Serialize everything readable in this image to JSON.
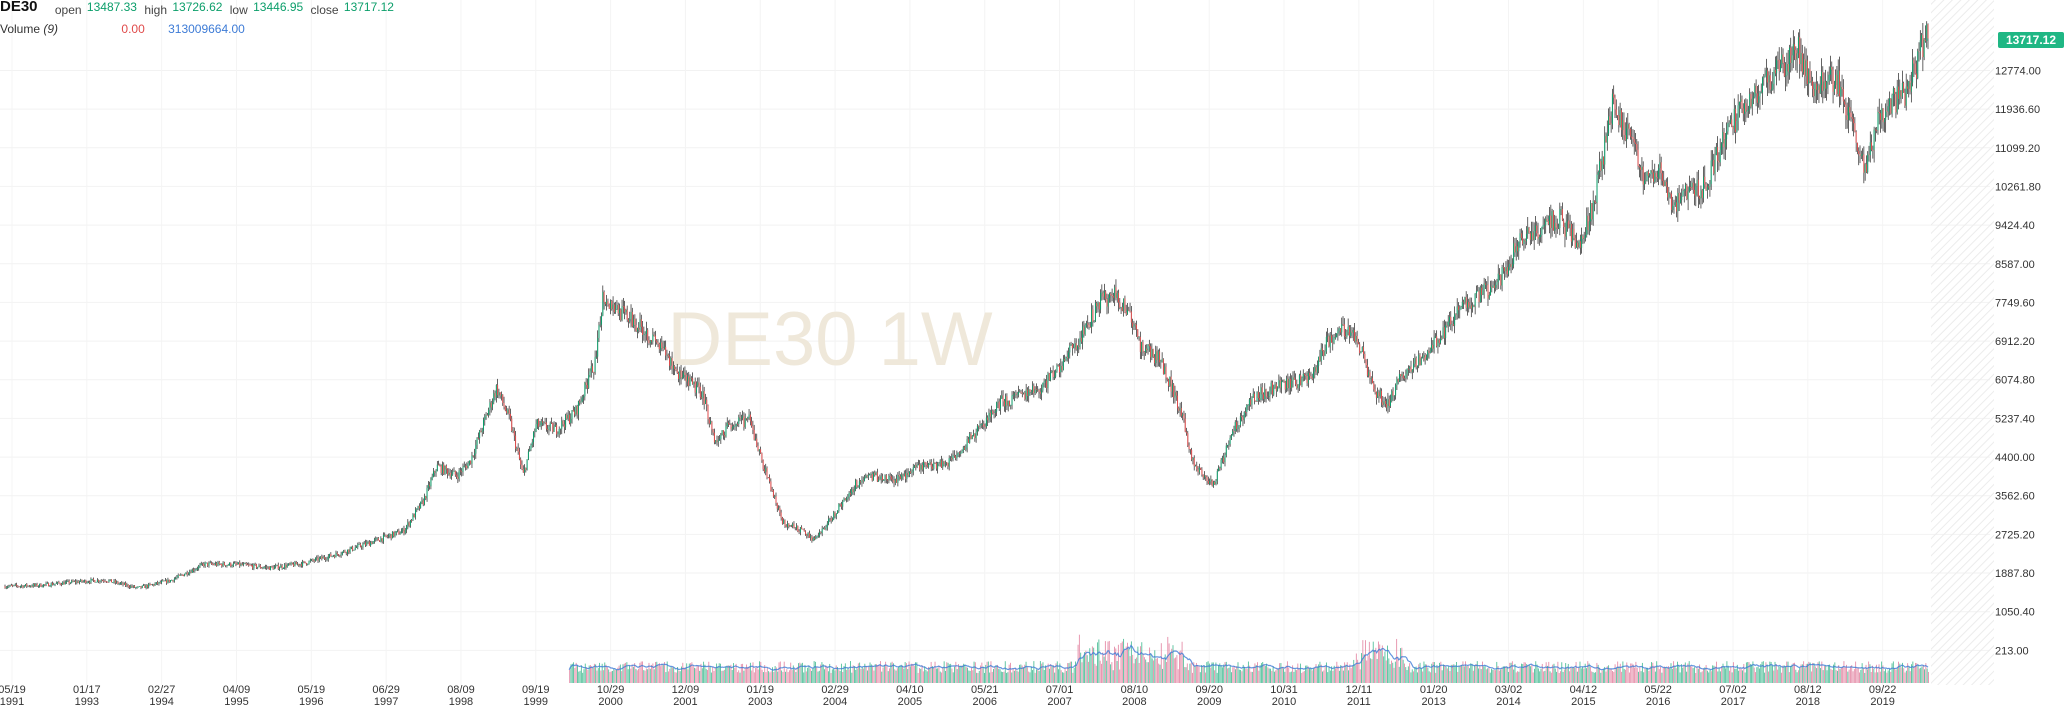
{
  "header": {
    "symbol": "DE30",
    "open_label": "open",
    "open": "13487.33",
    "high_label": "high",
    "high": "13726.62",
    "low_label": "low",
    "low": "13446.95",
    "close_label": "close",
    "close": "13717.12",
    "volume_label": "Volume",
    "volume_period": "(9)",
    "volume_change": "0.00",
    "volume_value": "313009664.00"
  },
  "watermark": "DE30 1W",
  "price_tag": "13717.12",
  "colors": {
    "up": "#0b9e6a",
    "down": "#e04a4a",
    "wick": "#222222",
    "vol_up": "#35b58a",
    "vol_down": "#e07a9a",
    "vol_ma": "#3d7bd6",
    "tag": "#1fb784"
  },
  "chart_data": {
    "type": "line",
    "y_ticks": [
      "213.00",
      "1050.40",
      "1887.80",
      "2725.20",
      "3562.60",
      "4400.00",
      "5237.40",
      "6074.80",
      "6912.20",
      "7749.60",
      "8587.00",
      "9424.40",
      "10261.80",
      "11099.20",
      "11936.60",
      "12774.00"
    ],
    "ylim": [
      -537,
      14300
    ],
    "x_ticks": [
      {
        "d": "05/19",
        "y": "1991"
      },
      {
        "d": "01/17",
        "y": "1993"
      },
      {
        "d": "02/27",
        "y": "1994"
      },
      {
        "d": "04/09",
        "y": "1995"
      },
      {
        "d": "05/19",
        "y": "1996"
      },
      {
        "d": "06/29",
        "y": "1997"
      },
      {
        "d": "08/09",
        "y": "1998"
      },
      {
        "d": "09/19",
        "y": "1999"
      },
      {
        "d": "10/29",
        "y": "2000"
      },
      {
        "d": "12/09",
        "y": "2001"
      },
      {
        "d": "01/19",
        "y": "2003"
      },
      {
        "d": "02/29",
        "y": "2004"
      },
      {
        "d": "04/10",
        "y": "2005"
      },
      {
        "d": "05/21",
        "y": "2006"
      },
      {
        "d": "07/01",
        "y": "2007"
      },
      {
        "d": "08/10",
        "y": "2008"
      },
      {
        "d": "09/20",
        "y": "2009"
      },
      {
        "d": "10/31",
        "y": "2010"
      },
      {
        "d": "12/11",
        "y": "2011"
      },
      {
        "d": "01/20",
        "y": "2013"
      },
      {
        "d": "03/02",
        "y": "2014"
      },
      {
        "d": "04/12",
        "y": "2015"
      },
      {
        "d": "05/22",
        "y": "2016"
      },
      {
        "d": "07/02",
        "y": "2017"
      },
      {
        "d": "08/12",
        "y": "2018"
      },
      {
        "d": "09/22",
        "y": "2019"
      }
    ],
    "x": [
      1991.0,
      1991.5,
      1992.0,
      1992.5,
      1993.0,
      1993.5,
      1994.0,
      1994.5,
      1995.0,
      1995.5,
      1996.0,
      1996.5,
      1997.0,
      1997.3,
      1997.5,
      1997.8,
      1998.0,
      1998.4,
      1998.6,
      1998.8,
      1999.0,
      1999.3,
      1999.6,
      1999.9,
      2000.0,
      2000.3,
      2000.6,
      2000.9,
      2001.2,
      2001.5,
      2001.7,
      2001.9,
      2002.2,
      2002.4,
      2002.7,
      2003.0,
      2003.2,
      2003.5,
      2003.8,
      2004.0,
      2004.4,
      2004.8,
      2005.2,
      2005.6,
      2006.0,
      2006.3,
      2006.6,
      2006.9,
      2007.2,
      2007.5,
      2007.7,
      2007.9,
      2008.1,
      2008.4,
      2008.7,
      2008.9,
      2009.1,
      2009.2,
      2009.5,
      2009.8,
      2010.1,
      2010.4,
      2010.7,
      2010.9,
      2011.2,
      2011.4,
      2011.6,
      2011.8,
      2012.0,
      2012.3,
      2012.6,
      2012.9,
      2013.2,
      2013.5,
      2013.8,
      2014.1,
      2014.4,
      2014.7,
      2014.9,
      2015.2,
      2015.3,
      2015.5,
      2015.7,
      2015.9,
      2016.1,
      2016.3,
      2016.6,
      2016.9,
      2017.2,
      2017.5,
      2017.8,
      2018.0,
      2018.2,
      2018.4,
      2018.6,
      2018.8,
      2019.0,
      2019.2,
      2019.4,
      2019.6,
      2019.8,
      2019.95
    ],
    "y": [
      1600,
      1620,
      1690,
      1740,
      1560,
      1730,
      2080,
      2070,
      2000,
      2100,
      2300,
      2550,
      2800,
      3450,
      4200,
      4000,
      4300,
      5900,
      5200,
      4000,
      5100,
      5000,
      5400,
      6500,
      7900,
      7500,
      7200,
      6700,
      6100,
      5800,
      4700,
      5100,
      5200,
      4300,
      3000,
      2800,
      2600,
      3200,
      3800,
      4000,
      3900,
      4200,
      4300,
      4900,
      5600,
      5700,
      5900,
      6400,
      7000,
      7800,
      7900,
      7600,
      6800,
      6500,
      5400,
      4200,
      3900,
      3800,
      5000,
      5700,
      5900,
      6000,
      6200,
      6900,
      7200,
      6800,
      5900,
      5500,
      6100,
      6500,
      7000,
      7600,
      7900,
      8200,
      9100,
      9300,
      9600,
      8900,
      9800,
      12000,
      11700,
      11300,
      10400,
      10700,
      9800,
      10100,
      10300,
      11400,
      12000,
      12500,
      12900,
      13200,
      12400,
      12600,
      12500,
      11700,
      10600,
      11700,
      12100,
      12300,
      13000,
      13717
    ]
  }
}
